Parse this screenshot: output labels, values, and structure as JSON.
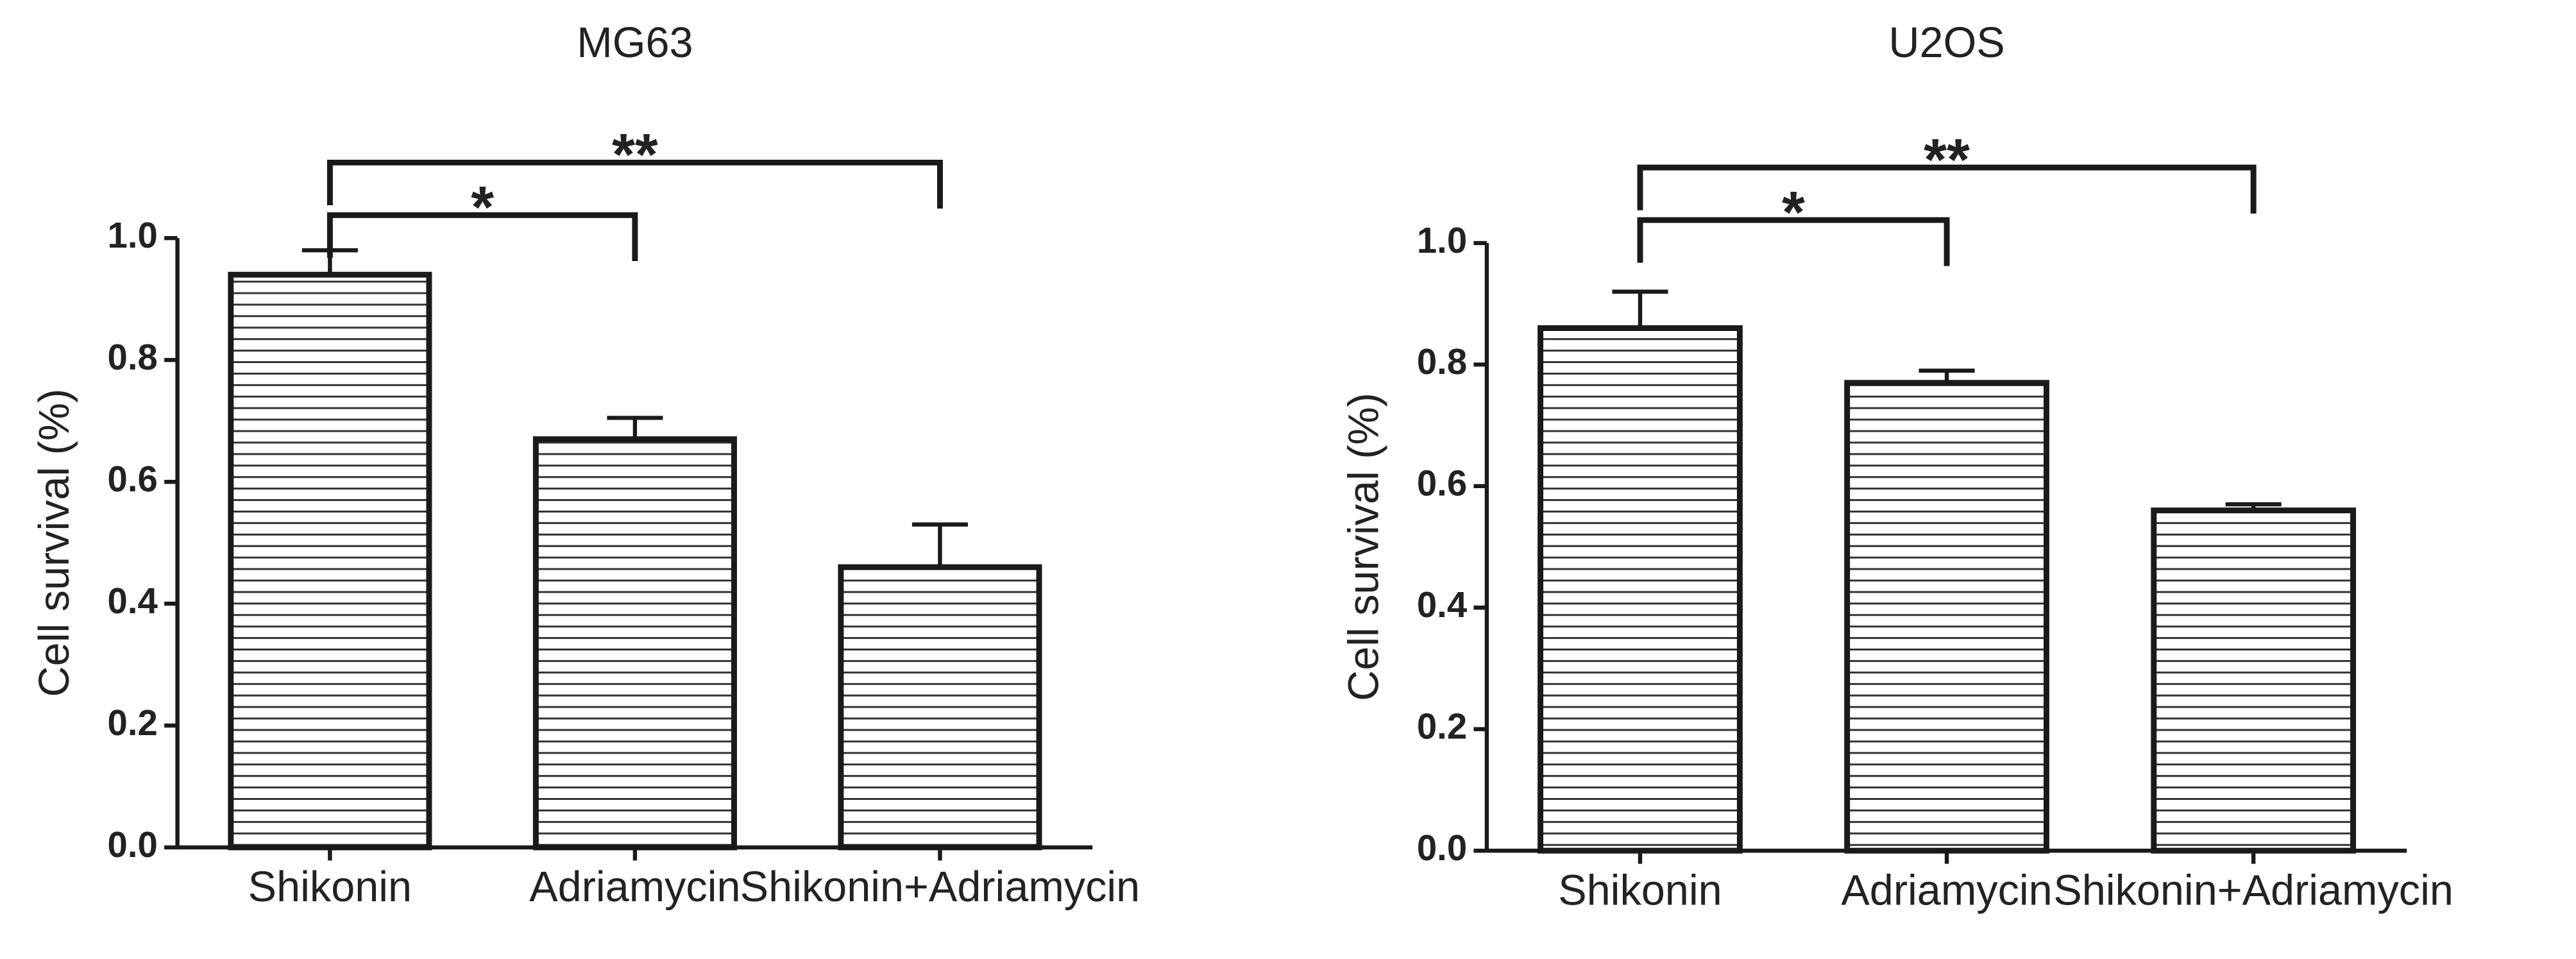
{
  "chart_data": [
    {
      "type": "bar",
      "title": "MG63",
      "ylabel": "Cell survival (%)",
      "categories": [
        "Shikonin",
        "Adriamycin",
        "Shikonin+Adriamycin"
      ],
      "values": [
        0.94,
        0.67,
        0.46
      ],
      "errors": [
        0.04,
        0.035,
        0.07
      ],
      "color": "#ffffff",
      "hatch": "horizontal",
      "ylim": [
        0,
        1
      ],
      "yticks": [
        {
          "value": 0,
          "label": "0.0"
        },
        0.2,
        0.4,
        0.6,
        0.8,
        {
          "value": 1,
          "label": "1.0"
        }
      ],
      "annotations": [
        {
          "text": "*",
          "from": "Shikonin",
          "to": "Adriamycin"
        },
        {
          "text": "**",
          "from": "Shikonin",
          "to": "Shikonin+Adriamycin"
        }
      ]
    },
    {
      "type": "bar",
      "title": "U2OS",
      "ylabel": "Cell survival (%)",
      "categories": [
        "Shikonin",
        "Adriamycin",
        "Shikonin+Adriamycin"
      ],
      "values": [
        0.86,
        0.77,
        0.56
      ],
      "errors": [
        0.06,
        0.02,
        0.01
      ],
      "color": "#ffffff",
      "hatch": "horizontal",
      "ylim": [
        0,
        1
      ],
      "yticks": [
        {
          "value": 0,
          "label": "0.0"
        },
        0.2,
        0.4,
        0.6,
        0.8,
        {
          "value": 1,
          "label": "1.0"
        }
      ],
      "annotations": [
        {
          "text": "*",
          "from": "Shikonin",
          "to": "Adriamycin"
        },
        {
          "text": "**",
          "from": "Shikonin",
          "to": "Shikonin+Adriamycin"
        }
      ]
    }
  ]
}
